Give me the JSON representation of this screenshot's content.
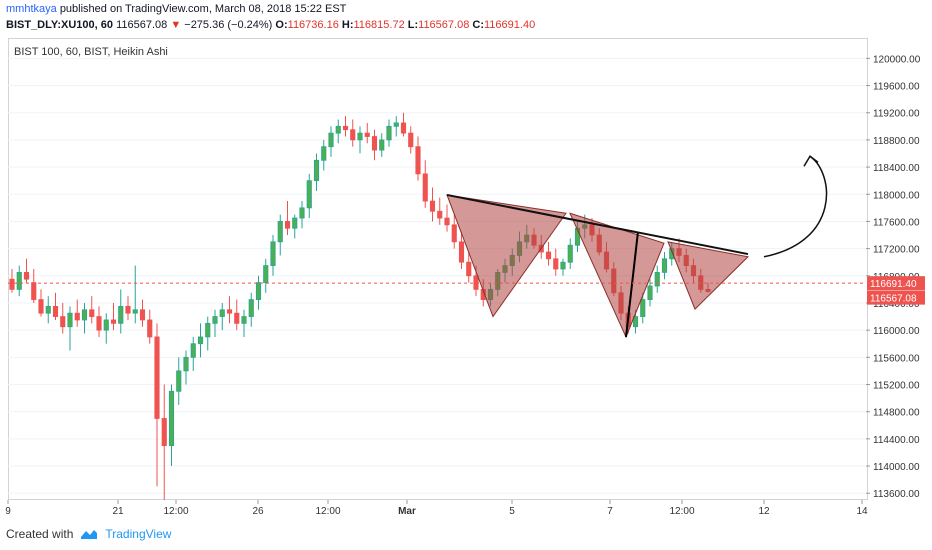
{
  "header": {
    "author": "mmhtkaya",
    "published": "published on TradingView.com, March 08, 2018 15:22 EST",
    "symbol": "BIST_DLY:XU100, 60",
    "price": "116567.08",
    "arrow": "▼",
    "change": "−275.36 (−0.24%)",
    "o_label": "O:",
    "o_value": "116736.16",
    "h_label": "H:",
    "h_value": "116815.72",
    "l_label": "L:",
    "l_value": "116567.08",
    "c_label": "C:",
    "c_value": "116691.40"
  },
  "legend": "BIST 100, 60, BIST, Heikin Ashi",
  "footer": {
    "created": "Created with",
    "brand": "TradingView"
  },
  "chart_data": {
    "type": "candlestick",
    "style": "Heikin Ashi",
    "ylim": [
      113500,
      120300
    ],
    "y_ticks": [
      "120000.00",
      "119600.00",
      "119200.00",
      "118800.00",
      "118400.00",
      "118000.00",
      "117600.00",
      "117200.00",
      "116800.00",
      "116400.00",
      "116000.00",
      "115600.00",
      "115200.00",
      "114800.00",
      "114400.00",
      "114000.00",
      "113600.00"
    ],
    "x_ticks": [
      "9",
      "21",
      "12:00",
      "26",
      "12:00",
      "Mar",
      "5",
      "7",
      "12:00",
      "12",
      "14"
    ],
    "price_labels": [
      {
        "value": 116691.4,
        "text": "116691.40",
        "color": "#ef5350"
      },
      {
        "value": 116567.08,
        "text": "116567.08",
        "color": "#ef5350"
      }
    ],
    "colors": {
      "up": "#26a69a",
      "up_fill": "#4caf50",
      "down": "#ef5350",
      "pattern_fill": "#b0433f",
      "pattern_stroke": "#8b2f2b"
    },
    "candles": [
      [
        116750,
        116900,
        116550,
        116600
      ],
      [
        116600,
        116950,
        116500,
        116850
      ],
      [
        116850,
        117050,
        116700,
        116750
      ],
      [
        116700,
        116900,
        116400,
        116450
      ],
      [
        116450,
        116600,
        116200,
        116250
      ],
      [
        116250,
        116500,
        116100,
        116350
      ],
      [
        116350,
        116550,
        116150,
        116200
      ],
      [
        116200,
        116400,
        115950,
        116050
      ],
      [
        116050,
        116350,
        115700,
        116250
      ],
      [
        116250,
        116450,
        116050,
        116150
      ],
      [
        116150,
        116400,
        115950,
        116300
      ],
      [
        116300,
        116500,
        116100,
        116200
      ],
      [
        116200,
        116350,
        115900,
        116000
      ],
      [
        116000,
        116250,
        115800,
        116150
      ],
      [
        116150,
        116400,
        116000,
        116100
      ],
      [
        116100,
        116600,
        115950,
        116350
      ],
      [
        116350,
        116500,
        116150,
        116250
      ],
      [
        116250,
        116950,
        116100,
        116300
      ],
      [
        116300,
        116450,
        116050,
        116150
      ],
      [
        116150,
        116300,
        115800,
        115900
      ],
      [
        115900,
        116100,
        113700,
        114700
      ],
      [
        114700,
        115200,
        113500,
        114300
      ],
      [
        114300,
        115200,
        114000,
        115100
      ],
      [
        115100,
        115600,
        114900,
        115400
      ],
      [
        115400,
        115700,
        115200,
        115600
      ],
      [
        115600,
        115900,
        115400,
        115800
      ],
      [
        115800,
        116100,
        115600,
        115900
      ],
      [
        115900,
        116200,
        115700,
        116100
      ],
      [
        116100,
        116300,
        115900,
        116200
      ],
      [
        116200,
        116400,
        116000,
        116300
      ],
      [
        116300,
        116500,
        116100,
        116250
      ],
      [
        116250,
        116450,
        116000,
        116100
      ],
      [
        116100,
        116300,
        115900,
        116200
      ],
      [
        116200,
        116550,
        116050,
        116450
      ],
      [
        116450,
        116800,
        116300,
        116700
      ],
      [
        116700,
        117050,
        116550,
        116950
      ],
      [
        116950,
        117400,
        116800,
        117300
      ],
      [
        117300,
        117700,
        117100,
        117600
      ],
      [
        117600,
        117900,
        117400,
        117500
      ],
      [
        117500,
        117700,
        117350,
        117650
      ],
      [
        117650,
        117900,
        117500,
        117800
      ],
      [
        117800,
        118300,
        117650,
        118200
      ],
      [
        118200,
        118600,
        118050,
        118500
      ],
      [
        118500,
        118800,
        118350,
        118700
      ],
      [
        118700,
        119000,
        118550,
        118900
      ],
      [
        118900,
        119100,
        118750,
        119000
      ],
      [
        119000,
        119150,
        118850,
        118950
      ],
      [
        118950,
        119100,
        118700,
        118800
      ],
      [
        118800,
        119000,
        118600,
        118900
      ],
      [
        118900,
        119050,
        118750,
        118850
      ],
      [
        118850,
        118950,
        118500,
        118650
      ],
      [
        118650,
        118900,
        118550,
        118800
      ],
      [
        118800,
        119100,
        118700,
        119000
      ],
      [
        119000,
        119150,
        118850,
        119050
      ],
      [
        119050,
        119200,
        118850,
        118900
      ],
      [
        118900,
        119000,
        118600,
        118700
      ],
      [
        118700,
        118850,
        118200,
        118300
      ],
      [
        118300,
        118500,
        117800,
        117900
      ],
      [
        117900,
        118100,
        117600,
        117750
      ],
      [
        117750,
        117950,
        117550,
        117650
      ],
      [
        117650,
        117850,
        117450,
        117550
      ],
      [
        117550,
        117700,
        117200,
        117300
      ],
      [
        117300,
        117450,
        116900,
        117000
      ],
      [
        117000,
        117150,
        116700,
        116800
      ],
      [
        116800,
        116950,
        116500,
        116600
      ],
      [
        116600,
        116750,
        116350,
        116450
      ],
      [
        116450,
        116700,
        116350,
        116600
      ],
      [
        116600,
        116900,
        116500,
        116850
      ],
      [
        116850,
        117050,
        116700,
        116950
      ],
      [
        116950,
        117200,
        116800,
        117100
      ],
      [
        117100,
        117450,
        117000,
        117300
      ],
      [
        117300,
        117550,
        117200,
        117400
      ],
      [
        117400,
        117500,
        117200,
        117250
      ],
      [
        117250,
        117400,
        117050,
        117150
      ],
      [
        117150,
        117300,
        116950,
        117050
      ],
      [
        117050,
        117200,
        116800,
        116900
      ],
      [
        116900,
        117050,
        116800,
        117000
      ],
      [
        117000,
        117350,
        116900,
        117250
      ],
      [
        117250,
        117600,
        117150,
        117500
      ],
      [
        117500,
        117700,
        117350,
        117550
      ],
      [
        117550,
        117650,
        117300,
        117400
      ],
      [
        117400,
        117500,
        117100,
        117150
      ],
      [
        117150,
        117300,
        116850,
        116900
      ],
      [
        116900,
        117000,
        116500,
        116550
      ],
      [
        116550,
        116650,
        116150,
        116250
      ],
      [
        116250,
        116350,
        115950,
        116050
      ],
      [
        116050,
        116300,
        115950,
        116200
      ],
      [
        116200,
        116550,
        116100,
        116450
      ],
      [
        116450,
        116750,
        116350,
        116650
      ],
      [
        116650,
        116950,
        116550,
        116850
      ],
      [
        116850,
        117150,
        116750,
        117050
      ],
      [
        117050,
        117300,
        116950,
        117200
      ],
      [
        117200,
        117350,
        117000,
        117100
      ],
      [
        117100,
        117200,
        116850,
        116950
      ],
      [
        116950,
        117050,
        116700,
        116800
      ],
      [
        116800,
        116900,
        116550,
        116600
      ],
      [
        116600,
        116700,
        116550,
        116570
      ]
    ],
    "annotations": {
      "neckline": [
        [
          117990,
          117100
        ]
      ],
      "pattern": "inverse head and shoulders",
      "arrow": "curved up"
    }
  }
}
